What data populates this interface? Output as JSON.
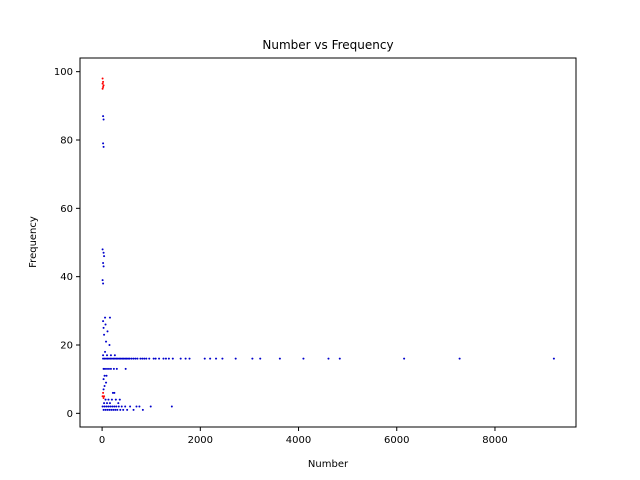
{
  "chart_data": {
    "type": "scatter",
    "title": "Number vs Frequency",
    "xlabel": "Number",
    "ylabel": "Frequency",
    "xlim": [
      -450,
      9650
    ],
    "ylim": [
      -4,
      104
    ],
    "xticks": [
      0,
      2000,
      4000,
      6000,
      8000
    ],
    "yticks": [
      0,
      20,
      40,
      60,
      80,
      100
    ],
    "grid": false,
    "colors": {
      "blue": "#0000cc",
      "red": "#ff0000"
    },
    "series": [
      {
        "color": "blue",
        "points": [
          [
            9200,
            16
          ],
          [
            7280,
            16
          ],
          [
            6150,
            16
          ],
          [
            4840,
            16
          ],
          [
            4610,
            16
          ],
          [
            4100,
            16
          ],
          [
            3620,
            16
          ],
          [
            3220,
            16
          ],
          [
            3060,
            16
          ],
          [
            2720,
            16
          ],
          [
            2450,
            16
          ],
          [
            2320,
            16
          ],
          [
            2200,
            16
          ],
          [
            2090,
            16
          ],
          [
            1780,
            16
          ],
          [
            1700,
            16
          ],
          [
            1600,
            16
          ],
          [
            1440,
            16
          ],
          [
            1360,
            16
          ],
          [
            1300,
            16
          ],
          [
            1250,
            16
          ],
          [
            1160,
            16
          ],
          [
            1090,
            16
          ],
          [
            1050,
            16
          ],
          [
            960,
            16
          ],
          [
            900,
            16
          ],
          [
            860,
            16
          ],
          [
            820,
            16
          ],
          [
            780,
            16
          ],
          [
            720,
            16
          ],
          [
            680,
            16
          ],
          [
            640,
            16
          ],
          [
            600,
            16
          ],
          [
            560,
            16
          ],
          [
            530,
            16
          ],
          [
            500,
            16
          ],
          [
            470,
            16
          ],
          [
            440,
            16
          ],
          [
            410,
            16
          ],
          [
            380,
            16
          ],
          [
            350,
            16
          ],
          [
            320,
            16
          ],
          [
            290,
            16
          ],
          [
            260,
            16
          ],
          [
            230,
            16
          ],
          [
            200,
            16
          ],
          [
            170,
            16
          ],
          [
            140,
            16
          ],
          [
            110,
            16
          ],
          [
            80,
            16
          ],
          [
            50,
            16
          ],
          [
            20,
            16
          ],
          [
            1420,
            2
          ],
          [
            990,
            2
          ],
          [
            830,
            1
          ],
          [
            760,
            2
          ],
          [
            700,
            2
          ],
          [
            640,
            1
          ],
          [
            570,
            2
          ],
          [
            510,
            1
          ],
          [
            470,
            2
          ],
          [
            430,
            1
          ],
          [
            400,
            2
          ],
          [
            370,
            1
          ],
          [
            340,
            2
          ],
          [
            310,
            1
          ],
          [
            290,
            2
          ],
          [
            270,
            1
          ],
          [
            250,
            2
          ],
          [
            230,
            1
          ],
          [
            210,
            2
          ],
          [
            190,
            1
          ],
          [
            170,
            2
          ],
          [
            150,
            1
          ],
          [
            130,
            2
          ],
          [
            110,
            1
          ],
          [
            90,
            2
          ],
          [
            70,
            1
          ],
          [
            50,
            2
          ],
          [
            30,
            1
          ],
          [
            10,
            2
          ],
          [
            330,
            3
          ],
          [
            280,
            4
          ],
          [
            250,
            6
          ],
          [
            200,
            4
          ],
          [
            160,
            3
          ],
          [
            130,
            4
          ],
          [
            100,
            3
          ],
          [
            70,
            4
          ],
          [
            40,
            3
          ],
          [
            360,
            4
          ],
          [
            220,
            6
          ],
          [
            480,
            13
          ],
          [
            300,
            13
          ],
          [
            240,
            13
          ],
          [
            180,
            13
          ],
          [
            140,
            13
          ],
          [
            100,
            13
          ],
          [
            60,
            13
          ],
          [
            30,
            13
          ],
          [
            20,
            17
          ],
          [
            60,
            18
          ],
          [
            100,
            17
          ],
          [
            180,
            17
          ],
          [
            260,
            17
          ],
          [
            150,
            20
          ],
          [
            80,
            21
          ],
          [
            40,
            23
          ],
          [
            110,
            24
          ],
          [
            30,
            25
          ],
          [
            70,
            26
          ],
          [
            20,
            27
          ],
          [
            60,
            28
          ],
          [
            160,
            28
          ],
          [
            50,
            11
          ],
          [
            90,
            11
          ],
          [
            30,
            10
          ],
          [
            80,
            9
          ],
          [
            50,
            8
          ],
          [
            30,
            7
          ],
          [
            20,
            38
          ],
          [
            10,
            39
          ],
          [
            30,
            43
          ],
          [
            20,
            44
          ],
          [
            40,
            46
          ],
          [
            30,
            47
          ],
          [
            10,
            48
          ],
          [
            30,
            78
          ],
          [
            20,
            79
          ],
          [
            30,
            86
          ],
          [
            20,
            87
          ]
        ]
      },
      {
        "color": "red",
        "points": [
          [
            10,
            98
          ],
          [
            20,
            97
          ],
          [
            10,
            96.5
          ],
          [
            30,
            96
          ],
          [
            20,
            95.5
          ],
          [
            10,
            95
          ],
          [
            20,
            6
          ],
          [
            40,
            5
          ],
          [
            10,
            5
          ],
          [
            30,
            4.5
          ]
        ]
      }
    ]
  }
}
